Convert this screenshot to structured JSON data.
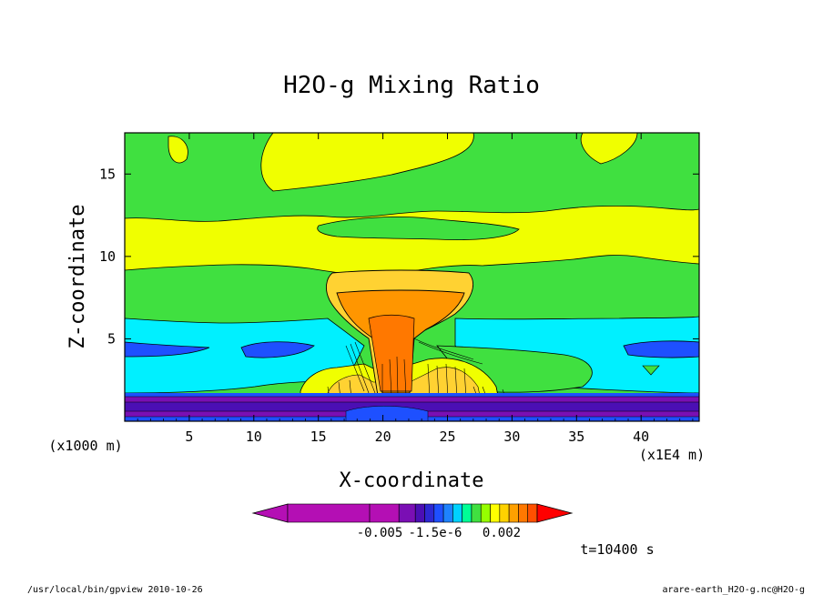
{
  "chart_data": {
    "type": "heatmap",
    "title": "H2O-g Mixing Ratio",
    "xlabel": "X-coordinate",
    "ylabel": "Z-coordinate",
    "x_unit": "(x1E4 m)",
    "y_unit": "(x1000 m)",
    "x_ticks": [
      5,
      10,
      15,
      20,
      25,
      30,
      35,
      40
    ],
    "y_ticks": [
      5,
      10,
      15
    ],
    "xlim": [
      0,
      44.5
    ],
    "ylim": [
      0,
      17.5
    ],
    "colorbar_labels": [
      "-0.005",
      "-1.5e-6",
      "0.002"
    ],
    "colorbar_colors": [
      "#b40fb4",
      "#b40fb4",
      "#b40fb4",
      "#7a0fb4",
      "#4b0fb4",
      "#2d28d2",
      "#1e50ff",
      "#1e82ff",
      "#00d2ff",
      "#00ff96",
      "#40e040",
      "#96ff00",
      "#ffff00",
      "#ffd200",
      "#ffa000",
      "#ff7800",
      "#ff5000",
      "#ff0000"
    ],
    "time_label": "t=10400 s",
    "levels": {
      "purple": "#7a0fb4",
      "blue": "#1e50ff",
      "cyan": "#00f0ff",
      "green": "#40e040",
      "yellow": "#f0ff00",
      "gold": "#ffd232",
      "orange": "#ff9600",
      "dark_orange": "#ff7800"
    }
  },
  "footer": {
    "left": "/usr/local/bin/gpview  2010-10-26",
    "right": "arare-earth_H2O-g.nc@H2O-g"
  }
}
